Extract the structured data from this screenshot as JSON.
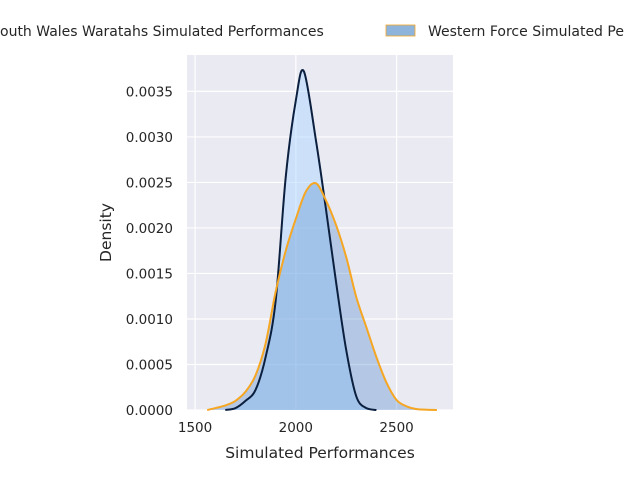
{
  "chart_data": {
    "type": "area",
    "subtype": "kde",
    "title": "",
    "xlabel": "Simulated Performances",
    "ylabel": "Density",
    "xlim": [
      1460,
      2780
    ],
    "ylim": [
      0,
      0.0039
    ],
    "xticks": [
      "1500",
      "2000",
      "2500"
    ],
    "xtick_values": [
      1500,
      2000,
      2500
    ],
    "yticks": [
      "0.0000",
      "0.0005",
      "0.0010",
      "0.0015",
      "0.0020",
      "0.0025",
      "0.0030",
      "0.0035"
    ],
    "ytick_values": [
      0,
      0.0005,
      0.001,
      0.0015,
      0.002,
      0.0025,
      0.003,
      0.0035
    ],
    "grid": true,
    "background": "#eaeaf2",
    "legend_placement": "top, outside (clipped)",
    "series": [
      {
        "name": "outh Wales Waratahs Simulated Performances",
        "line_color": "#0b1f3f",
        "fill_color": "#add8ff",
        "x": [
          1650,
          1700,
          1750,
          1800,
          1850,
          1900,
          1950,
          2000,
          2040,
          2100,
          2150,
          2200,
          2250,
          2300,
          2350,
          2400
        ],
        "y": [
          0,
          2e-05,
          0.0001,
          0.00022,
          0.00058,
          0.0012,
          0.00256,
          0.0034,
          0.00372,
          0.00296,
          0.0022,
          0.0014,
          0.00066,
          0.00015,
          2e-05,
          0
        ]
      },
      {
        "name": "Western Force Simulated Pe",
        "line_color": "#f5a623",
        "fill_color": "#6496d2",
        "x": [
          1560,
          1600,
          1650,
          1700,
          1750,
          1800,
          1850,
          1900,
          1950,
          2000,
          2050,
          2100,
          2150,
          2200,
          2250,
          2300,
          2350,
          2400,
          2450,
          2500,
          2550,
          2600,
          2700
        ],
        "y": [
          0,
          2e-05,
          5e-05,
          0.0001,
          0.0002,
          0.00038,
          0.00073,
          0.0013,
          0.00175,
          0.0021,
          0.0024,
          0.00249,
          0.0023,
          0.00203,
          0.00168,
          0.00124,
          0.00091,
          0.00058,
          0.0003,
          0.00011,
          4e-05,
          1e-05,
          0
        ]
      }
    ]
  }
}
